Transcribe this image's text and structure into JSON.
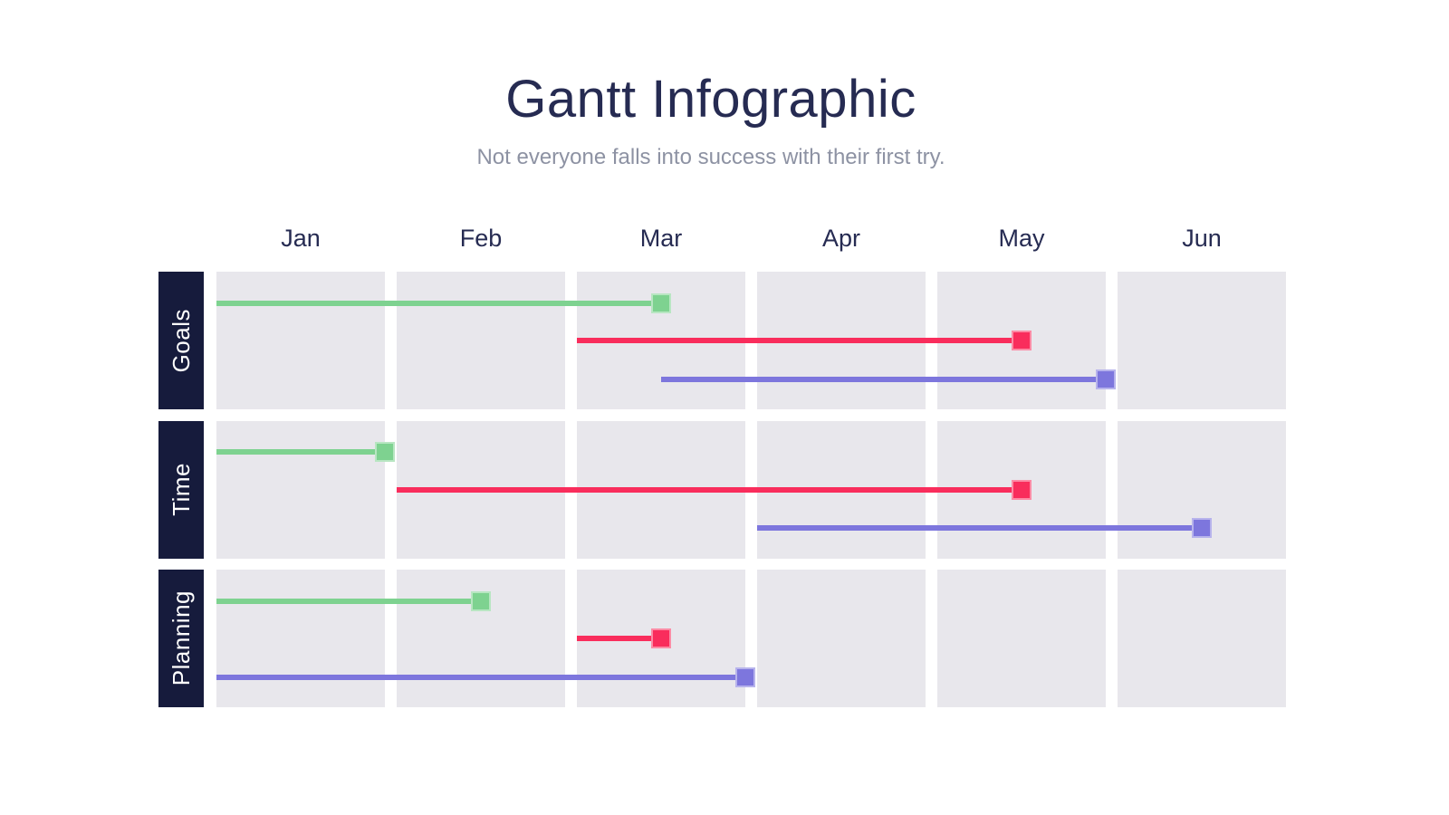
{
  "page": {
    "title": "Gantt Infographic",
    "subtitle": "Not everyone falls into success with their first try."
  },
  "colors": {
    "title_text": "#262b52",
    "subtitle_text": "#8d92a3",
    "label_bg": "#161b3c",
    "label_text": "#ffffff",
    "cell_bg": "#e8e7ec",
    "green": "#7ed290",
    "red": "#f92d5c",
    "purple": "#7d76dd"
  },
  "chart_data": {
    "type": "gantt",
    "title": "Gantt Infographic",
    "subtitle": "Not everyone falls into success with their first try.",
    "x_axis": {
      "unit": "month",
      "range": [
        0,
        6
      ],
      "grid": "shaded month cells"
    },
    "months": [
      "Jan",
      "Feb",
      "Mar",
      "Apr",
      "May",
      "Jun"
    ],
    "rows": [
      {
        "label": "Goals",
        "tasks": [
          {
            "series": "green",
            "start_month": 0,
            "end_month": 2.5
          },
          {
            "series": "red",
            "start_month": 2,
            "end_month": 4.5
          },
          {
            "series": "purple",
            "start_month": 2.5,
            "end_month": 5
          }
        ]
      },
      {
        "label": "Time",
        "tasks": [
          {
            "series": "green",
            "start_month": 0,
            "end_month": 1
          },
          {
            "series": "red",
            "start_month": 1,
            "end_month": 4.5
          },
          {
            "series": "purple",
            "start_month": 3,
            "end_month": 5.5
          }
        ]
      },
      {
        "label": "Planning",
        "tasks": [
          {
            "series": "green",
            "start_month": 0,
            "end_month": 1.5
          },
          {
            "series": "red",
            "start_month": 2,
            "end_month": 2.5
          },
          {
            "series": "purple",
            "start_month": 0,
            "end_month": 3
          }
        ]
      }
    ]
  }
}
